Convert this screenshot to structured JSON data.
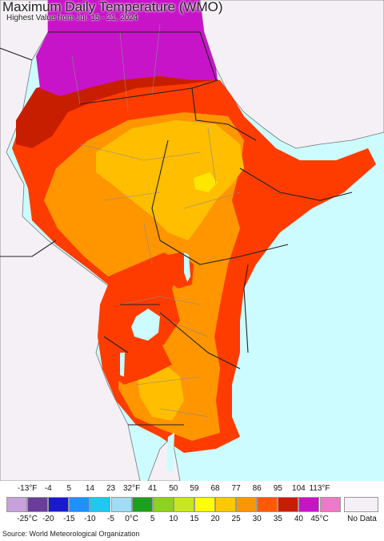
{
  "title": "Maximum Daily Temperature (WMO)",
  "subtitle": "Highest Value from Jul. 15 - 21, 2024",
  "legend": {
    "fahrenheit_ticks": [
      "-13°F",
      "-4",
      "5",
      "14",
      "23",
      "32°F",
      "41",
      "50",
      "59",
      "68",
      "77",
      "86",
      "95",
      "104",
      "113°F"
    ],
    "celsius_ticks": [
      "-25°C",
      "-20",
      "-15",
      "-10",
      "-5",
      "0°C",
      "5",
      "10",
      "15",
      "20",
      "25",
      "30",
      "35",
      "40",
      "45°C"
    ],
    "colors": [
      "#c8a0dc",
      "#6a3d9a",
      "#1a1acd",
      "#1e90ff",
      "#1ec8f0",
      "#a0dcf5",
      "#1aa01a",
      "#8cd21e",
      "#c8e61e",
      "#ffff00",
      "#ffc800",
      "#ff9600",
      "#ff5a00",
      "#c81e00",
      "#c814c8",
      "#f078c8"
    ],
    "no_data_label": "No Data"
  },
  "source": "Source: World Meteorological Organization",
  "map_colors": {
    "ocean": "#ccfcff",
    "no_data": "#f5f0f5",
    "t45": "#c814c8",
    "t40": "#c81e00",
    "t35": "#ff3c00",
    "t30": "#ff9600",
    "t25": "#ffbe00",
    "t20": "#ffe600",
    "lake": "#ccfcff",
    "border": "#222222",
    "subborder": "#8a8a8a"
  }
}
